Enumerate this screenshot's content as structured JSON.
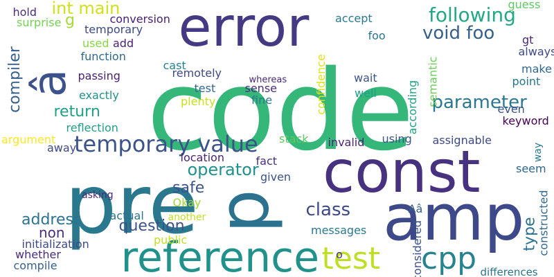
{
  "words": [
    {
      "text": "code",
      "color": "#35b779"
    },
    {
      "text": "pre",
      "color": "#2a788e"
    },
    {
      "text": "error",
      "color": "#443a83"
    },
    {
      "text": "const",
      "color": "#46327e"
    },
    {
      "text": "amp",
      "color": "#3e4989"
    },
    {
      "text": "reference",
      "color": "#21918c"
    },
    {
      "text": "p",
      "color": "#2c728e"
    },
    {
      "text": "â",
      "color": "#3b528b"
    },
    {
      "text": "test",
      "color": "#bddf26"
    },
    {
      "text": "cpp",
      "color": "#26828e"
    },
    {
      "text": "temporary value",
      "color": "#3b528b"
    },
    {
      "text": "following",
      "color": "#22a884"
    },
    {
      "text": "void foo",
      "color": "#355f8d"
    },
    {
      "text": "parameter",
      "color": "#2a788e"
    },
    {
      "text": "class",
      "color": "#3e4989"
    },
    {
      "text": "int main",
      "color": "#d0e11c"
    },
    {
      "text": "operator",
      "color": "#21918c"
    },
    {
      "text": "question",
      "color": "#3b528b"
    },
    {
      "text": "return",
      "color": "#1fa187"
    },
    {
      "text": "safe",
      "color": "#3b528b"
    },
    {
      "text": "address",
      "color": "#2c728e"
    },
    {
      "text": "type",
      "color": "#2c728e"
    },
    {
      "text": "non",
      "color": "#472d7b"
    },
    {
      "text": "compiler",
      "color": "#355f8d"
    },
    {
      "text": "g",
      "color": "#a5db36"
    },
    {
      "text": "hold",
      "color": "#472d7b"
    },
    {
      "text": "conversion",
      "color": "#482173"
    },
    {
      "text": "surprise",
      "color": "#75d054"
    },
    {
      "text": "temporary",
      "color": "#3e4989"
    },
    {
      "text": "accept",
      "color": "#2a788e"
    },
    {
      "text": "guess",
      "color": "#5ec962"
    },
    {
      "text": "gt",
      "color": "#482878"
    },
    {
      "text": "foo",
      "color": "#2a788e"
    },
    {
      "text": "always",
      "color": "#3e4989"
    },
    {
      "text": "make",
      "color": "#31688e"
    },
    {
      "text": "point",
      "color": "#2a788e"
    },
    {
      "text": "even",
      "color": "#3b528b"
    },
    {
      "text": "keyword",
      "color": "#440154"
    },
    {
      "text": "used",
      "color": "#86d549"
    },
    {
      "text": "add",
      "color": "#482173"
    },
    {
      "text": "function",
      "color": "#31688e"
    },
    {
      "text": "passing",
      "color": "#481f70"
    },
    {
      "text": "exactly",
      "color": "#21918c"
    },
    {
      "text": "cast",
      "color": "#26828e"
    },
    {
      "text": "remotely",
      "color": "#3e4989"
    },
    {
      "text": "test",
      "color": "#31688e"
    },
    {
      "text": "plenty",
      "color": "#c8e020"
    },
    {
      "text": "sense",
      "color": "#472d7b"
    },
    {
      "text": "fine",
      "color": "#2a788e"
    },
    {
      "text": "whereas",
      "color": "#482878"
    },
    {
      "text": "wait",
      "color": "#3b528b"
    },
    {
      "text": "well",
      "color": "#1f9e89"
    },
    {
      "text": "confidence",
      "color": "#dde318"
    },
    {
      "text": "semantic",
      "color": "#6ccd5a"
    },
    {
      "text": "according",
      "color": "#1fa187"
    },
    {
      "text": "reflection",
      "color": "#1f9e89"
    },
    {
      "text": "argument",
      "color": "#fde725"
    },
    {
      "text": "away",
      "color": "#3e4989"
    },
    {
      "text": "location",
      "color": "#482475"
    },
    {
      "text": "stack",
      "color": "#5ec962"
    },
    {
      "text": "invalid",
      "color": "#482475"
    },
    {
      "text": "using",
      "color": "#3b528b"
    },
    {
      "text": "assignable",
      "color": "#3e4989"
    },
    {
      "text": "way",
      "color": "#2a788e"
    },
    {
      "text": "fact",
      "color": "#472d7b"
    },
    {
      "text": "given",
      "color": "#3b528b"
    },
    {
      "text": "seem",
      "color": "#31688e"
    },
    {
      "text": "asking",
      "color": "#482878"
    },
    {
      "text": "Okay",
      "color": "#a0da39"
    },
    {
      "text": "Aâ",
      "color": "#355f8d"
    },
    {
      "text": "actual",
      "color": "#2c728e"
    },
    {
      "text": "another",
      "color": "#c2df23"
    },
    {
      "text": "messages",
      "color": "#2a788e"
    },
    {
      "text": "public",
      "color": "#c2df23"
    },
    {
      "text": "initialization",
      "color": "#3e4989"
    },
    {
      "text": "whether",
      "color": "#472d7b"
    },
    {
      "text": "compile",
      "color": "#355f8d"
    },
    {
      "text": "o",
      "color": "#472d7b"
    },
    {
      "text": "considered",
      "color": "#3b528b"
    },
    {
      "text": "constructed",
      "color": "#31688e"
    },
    {
      "text": "differences",
      "color": "#2c728e"
    }
  ]
}
